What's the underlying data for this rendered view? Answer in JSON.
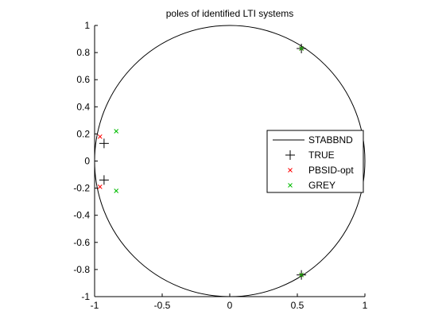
{
  "chart_data": {
    "type": "scatter",
    "title": "poles of identified LTI systems",
    "xlim": [
      -1,
      1
    ],
    "ylim": [
      -1,
      1
    ],
    "xticks": [
      -1,
      -0.5,
      0,
      0.5,
      1
    ],
    "yticks": [
      -1,
      -0.8,
      -0.6,
      -0.4,
      -0.2,
      0,
      0.2,
      0.4,
      0.6,
      0.8,
      1
    ],
    "xtick_labels": [
      "-1",
      "-0.5",
      "0",
      "0.5",
      "1"
    ],
    "ytick_labels": [
      "-1",
      "-0.8",
      "-0.6",
      "-0.4",
      "-0.2",
      "0",
      "0.2",
      "0.4",
      "0.6",
      "0.8",
      "1"
    ],
    "grid": false,
    "legend_position": "right",
    "series": [
      {
        "name": "STABBND",
        "kind": "line",
        "shape": "unit-circle",
        "color": "#000000"
      },
      {
        "name": "TRUE",
        "kind": "marker",
        "marker": "plus",
        "color": "#000000",
        "points": [
          [
            0.53,
            0.83
          ],
          [
            0.53,
            -0.84
          ],
          [
            -0.93,
            0.13
          ],
          [
            -0.93,
            -0.14
          ]
        ]
      },
      {
        "name": "PBSID-opt",
        "kind": "marker",
        "marker": "x",
        "color": "#ff0000",
        "points": [
          [
            0.53,
            0.83
          ],
          [
            0.53,
            -0.84
          ],
          [
            -0.96,
            0.18
          ],
          [
            -0.96,
            -0.19
          ]
        ]
      },
      {
        "name": "GREY",
        "kind": "marker",
        "marker": "x",
        "color": "#00bb00",
        "points": [
          [
            0.53,
            0.83
          ],
          [
            0.53,
            -0.84
          ],
          [
            -0.84,
            0.22
          ],
          [
            -0.84,
            -0.22
          ]
        ]
      }
    ]
  }
}
